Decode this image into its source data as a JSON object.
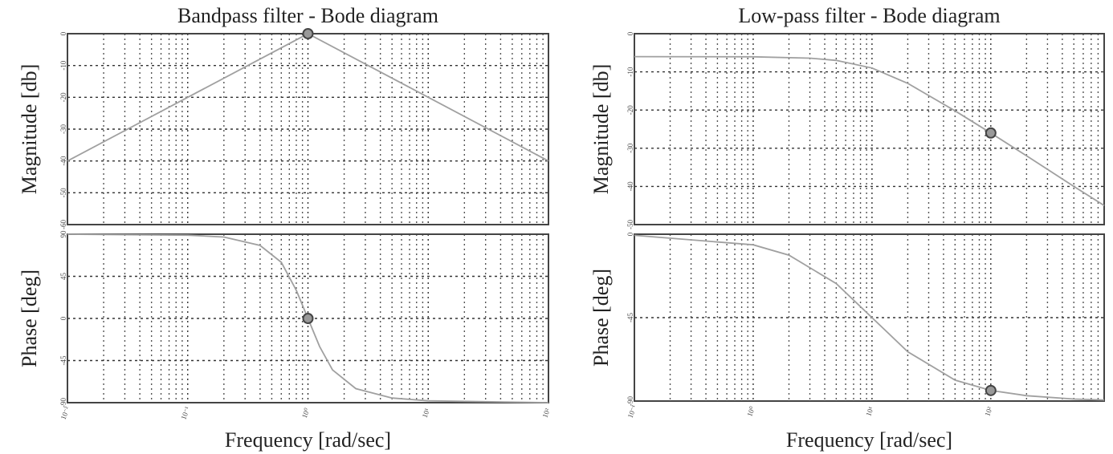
{
  "chart_data": [
    {
      "type": "line",
      "title": "Bandpass filter - Bode diagram",
      "ylabel": "Magnitude [db]",
      "xscale": "log",
      "grid": true,
      "color": "#a0a0a0",
      "x": [
        0.01,
        0.1,
        1,
        10,
        100
      ],
      "values": [
        -40,
        -20,
        0,
        -20,
        -40
      ],
      "highlight": {
        "x": 1,
        "y": 0
      },
      "xlim": [
        0.01,
        100
      ],
      "ylim": [
        -60,
        0
      ],
      "xticks": [
        0.01,
        0.1,
        1,
        10,
        100
      ],
      "yticks": [
        0,
        -10,
        -20,
        -30,
        -40,
        -50,
        -60
      ]
    },
    {
      "type": "line",
      "ylabel": "Phase [deg]",
      "xlabel": "Frequency [rad/sec]",
      "xscale": "log",
      "grid": true,
      "color": "#a0a0a0",
      "x": [
        0.01,
        0.1,
        0.2,
        0.4,
        0.6,
        0.8,
        1,
        1.25,
        1.6,
        2.5,
        5,
        10,
        100
      ],
      "values": [
        90,
        89,
        87,
        78,
        60,
        30,
        0,
        -30,
        -55,
        -75,
        -85,
        -88,
        -90
      ],
      "highlight": {
        "x": 1,
        "y": 0
      },
      "xlim": [
        0.01,
        100
      ],
      "ylim": [
        -90,
        90
      ],
      "xticks": [
        {
          "value": 0.01,
          "label": "10⁻²"
        },
        {
          "value": 0.1,
          "label": "10⁻¹"
        },
        {
          "value": 1,
          "label": "10⁰"
        },
        {
          "value": 10,
          "label": "10¹"
        },
        {
          "value": 100,
          "label": "10²"
        }
      ],
      "yticks": [
        90,
        45,
        0,
        -45,
        -90
      ]
    },
    {
      "type": "line",
      "title": "Low-pass filter - Bode diagram",
      "ylabel": "Magnitude [db]",
      "xscale": "log",
      "grid": true,
      "color": "#a0a0a0",
      "x": [
        0.1,
        1,
        3,
        5,
        10,
        20,
        50,
        100,
        200,
        500,
        900
      ],
      "values": [
        -6,
        -6.04,
        -6.4,
        -7,
        -9,
        -13,
        -20.2,
        -26,
        -32,
        -40,
        -45
      ],
      "highlight": {
        "x": 100,
        "y": -26
      },
      "xlim": [
        0.1,
        900
      ],
      "ylim": [
        -50,
        0
      ],
      "xticks": [
        0.1,
        1,
        10,
        100
      ],
      "yticks": [
        0,
        -10,
        -20,
        -30,
        -40,
        -50
      ]
    },
    {
      "type": "line",
      "ylabel": "Phase [deg]",
      "xlabel": "Frequency [rad/sec]",
      "xscale": "log",
      "grid": true,
      "color": "#a0a0a0",
      "x": [
        0.1,
        1,
        2,
        5,
        10,
        20,
        50,
        100,
        200,
        500,
        900
      ],
      "values": [
        -0.6,
        -5.7,
        -11.3,
        -26.6,
        -45,
        -63.4,
        -78.7,
        -84.3,
        -87.1,
        -88.9,
        -89.4
      ],
      "highlight": {
        "x": 100,
        "y": -84.3
      },
      "xlim": [
        0.1,
        900
      ],
      "ylim": [
        -90,
        0
      ],
      "xticks": [
        {
          "value": 0.1,
          "label": "10⁻¹"
        },
        {
          "value": 1,
          "label": "10⁰"
        },
        {
          "value": 10,
          "label": "10¹"
        },
        {
          "value": 100,
          "label": "10²"
        }
      ],
      "yticks": [
        0,
        -45,
        -90
      ]
    }
  ]
}
